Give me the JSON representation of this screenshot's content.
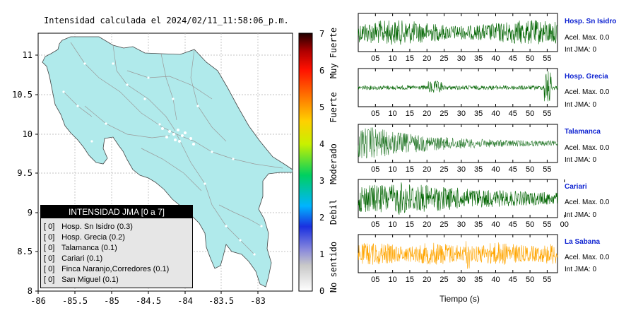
{
  "map": {
    "title": "Intensidad calculada el 2024/02/11_11:58:06_p.m.",
    "x_ticks": [
      "-86",
      "-85.5",
      "-85",
      "-84.5",
      "-84",
      "-83.5",
      "-83"
    ],
    "y_ticks": [
      "11",
      "10.5",
      "10",
      "9.5",
      "9",
      "8.5",
      "8"
    ],
    "xlim": [
      -86,
      -82.5
    ],
    "ylim": [
      8,
      11.3
    ],
    "land_color": "#b0eaeb",
    "legend": {
      "title": "INTENSIDAD JMA [0 a 7]",
      "items": [
        {
          "box": "[ 0]",
          "label": "Hosp. Sn Isidro (0.3)"
        },
        {
          "box": "[ 0]",
          "label": "Hosp. Grecia (0.2)"
        },
        {
          "box": "[ 0]",
          "label": "Talamanca (0.1)"
        },
        {
          "box": "[ 0]",
          "label": "Cariari (0.1)"
        },
        {
          "box": "[ 0]",
          "label": "Finca Naranjo,Corredores (0.1)"
        },
        {
          "box": "[ 0]",
          "label": "San Miguel (0.1)"
        }
      ]
    }
  },
  "colorbar": {
    "ticks": [
      "7",
      "6",
      "5",
      "4",
      "3",
      "2",
      "1",
      "0"
    ],
    "range": [
      0,
      7
    ],
    "categories": [
      "Muy Fuerte",
      "Fuerte",
      "Moderado",
      "Debil",
      "No sentido"
    ]
  },
  "chart_data": {
    "type": "line",
    "xlabel": "Tiempo (s)",
    "x_ticks": [
      "05",
      "10",
      "15",
      "20",
      "25",
      "30",
      "35",
      "40",
      "45",
      "50",
      "55"
    ],
    "x_ticks_cariari": [
      "05",
      "10",
      "15",
      "20",
      "25",
      "30",
      "35",
      "40",
      "45",
      "50",
      "55",
      "00"
    ],
    "xlim": [
      0,
      58
    ],
    "panels": [
      {
        "name": "Hosp. Sn Isidro",
        "acel": "Acel. Max. 0.0",
        "int": "Int JMA: 0",
        "color": "#006400"
      },
      {
        "name": "Hosp. Grecia",
        "acel": "Acel. Max. 0.0",
        "int": "Int JMA: 0",
        "color": "#006400"
      },
      {
        "name": "Talamanca",
        "acel": "Acel. Max. 0.0",
        "int": "Int JMA: 0",
        "color": "#2e7d32"
      },
      {
        "name": "Cariari",
        "acel": "Acel. Max. 0.0",
        "int": "Int JMA: 0",
        "color": "#006400"
      },
      {
        "name": "La Sabana",
        "acel": "Acel. Max. 0.0",
        "int": "Int JMA: 0",
        "color": "#ffa500"
      }
    ]
  }
}
